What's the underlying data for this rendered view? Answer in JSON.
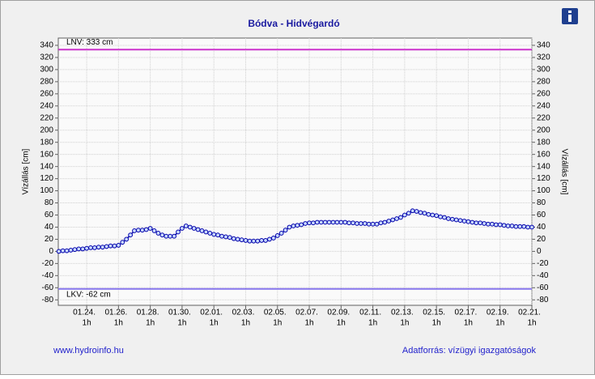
{
  "chart_data": {
    "type": "line",
    "title": "Bódva - Hidvégardó",
    "y_label": "Vízállás [cm]",
    "y2_label": "Vízállás [cm]",
    "categories": [
      null,
      null,
      null,
      null,
      null,
      null,
      null,
      "01.24.",
      null,
      null,
      null,
      null,
      null,
      null,
      null,
      "01.26.",
      null,
      null,
      null,
      null,
      null,
      null,
      null,
      "01.28.",
      null,
      null,
      null,
      null,
      null,
      null,
      null,
      "01.30.",
      null,
      null,
      null,
      null,
      null,
      null,
      null,
      "02.01.",
      null,
      null,
      null,
      null,
      null,
      null,
      null,
      "02.03.",
      null,
      null,
      null,
      null,
      null,
      null,
      null,
      "02.05.",
      null,
      null,
      null,
      null,
      null,
      null,
      null,
      "02.07.",
      null,
      null,
      null,
      null,
      null,
      null,
      null,
      "02.09.",
      null,
      null,
      null,
      null,
      null,
      null,
      null,
      "02.11.",
      null,
      null,
      null,
      null,
      null,
      null,
      null,
      "02.13.",
      null,
      null,
      null,
      null,
      null,
      null,
      null,
      "02.15.",
      null,
      null,
      null,
      null,
      null,
      null,
      null,
      "02.17.",
      null,
      null,
      null,
      null,
      null,
      null,
      null,
      "02.19.",
      null,
      null,
      null,
      null,
      null,
      null,
      null,
      "02.21."
    ],
    "category_hours": [
      null,
      null,
      null,
      null,
      null,
      null,
      null,
      "1h",
      null,
      null,
      null,
      null,
      null,
      null,
      null,
      "1h",
      null,
      null,
      null,
      null,
      null,
      null,
      null,
      "1h",
      null,
      null,
      null,
      null,
      null,
      null,
      null,
      "1h",
      null,
      null,
      null,
      null,
      null,
      null,
      null,
      "1h",
      null,
      null,
      null,
      null,
      null,
      null,
      null,
      "1h",
      null,
      null,
      null,
      null,
      null,
      null,
      null,
      "1h",
      null,
      null,
      null,
      null,
      null,
      null,
      null,
      "1h",
      null,
      null,
      null,
      null,
      null,
      null,
      null,
      "1h",
      null,
      null,
      null,
      null,
      null,
      null,
      null,
      "1h",
      null,
      null,
      null,
      null,
      null,
      null,
      null,
      "1h",
      null,
      null,
      null,
      null,
      null,
      null,
      null,
      "1h",
      null,
      null,
      null,
      null,
      null,
      null,
      null,
      "1h",
      null,
      null,
      null,
      null,
      null,
      null,
      null,
      "1h",
      null,
      null,
      null,
      null,
      null,
      null,
      null,
      "1h"
    ],
    "series": [
      {
        "color": "#0000aa",
        "marker_fill": "#c8d8ff",
        "values": [
          0,
          1,
          1,
          2,
          3,
          4,
          4,
          5,
          6,
          6,
          7,
          7,
          8,
          9,
          9,
          10,
          15,
          20,
          27,
          34,
          35,
          35,
          36,
          38,
          34,
          30,
          27,
          25,
          25,
          25,
          32,
          38,
          42,
          40,
          38,
          36,
          34,
          32,
          30,
          28,
          27,
          25,
          24,
          23,
          21,
          20,
          19,
          18,
          17,
          17,
          17,
          18,
          18,
          20,
          22,
          26,
          30,
          35,
          40,
          42,
          43,
          44,
          46,
          47,
          47,
          48,
          48,
          48,
          48,
          48,
          48,
          48,
          48,
          47,
          47,
          46,
          46,
          46,
          45,
          45,
          45,
          47,
          48,
          50,
          52,
          54,
          56,
          60,
          63,
          67,
          66,
          64,
          63,
          61,
          60,
          59,
          57,
          56,
          54,
          53,
          52,
          51,
          50,
          49,
          48,
          47,
          47,
          46,
          45,
          45,
          44,
          44,
          43,
          42,
          42,
          41,
          41,
          41,
          40,
          40
        ]
      }
    ],
    "reference_lines": [
      {
        "label": "LNV: 333 cm",
        "value": 333,
        "color": "#cc33cc"
      },
      {
        "label": "LKV: -62 cm",
        "value": -62,
        "color": "#8877ee"
      }
    ],
    "ylim": [
      -89,
      352
    ],
    "y2lim": [
      -89,
      352
    ],
    "yticks": [
      -80,
      -60,
      -40,
      -20,
      0,
      20,
      40,
      60,
      80,
      100,
      120,
      140,
      160,
      180,
      200,
      220,
      240,
      260,
      280,
      300,
      320,
      340
    ],
    "grid": true,
    "footer_left": "www.hydroinfo.hu",
    "footer_right": "Adatforrás: vízügyi igazgatóságok"
  }
}
